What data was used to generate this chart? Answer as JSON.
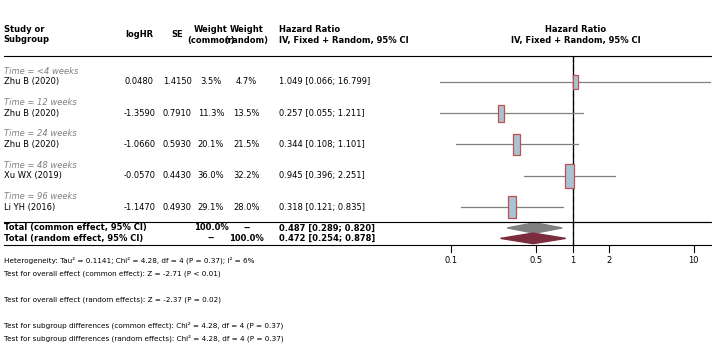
{
  "subgroups": [
    {
      "label": "Time = <4 weeks",
      "type": "subgroup"
    },
    {
      "label": "Zhu B (2020)",
      "loghr": 0.048,
      "se": 1.415,
      "wt_common": "3.5%",
      "wt_random": "4.7%",
      "hr_text": "1.049 [0.066; 16.799]",
      "hr": 1.049,
      "ci_lo": 0.066,
      "ci_hi": 16.799,
      "type": "study"
    },
    {
      "label": "",
      "type": "spacer"
    },
    {
      "label": "Time = 12 weeks",
      "type": "subgroup"
    },
    {
      "label": "Zhu B (2020)",
      "loghr": -1.359,
      "se": 0.791,
      "wt_common": "11.3%",
      "wt_random": "13.5%",
      "hr_text": "0.257 [0.055; 1.211]",
      "hr": 0.257,
      "ci_lo": 0.055,
      "ci_hi": 1.211,
      "type": "study"
    },
    {
      "label": "",
      "type": "spacer"
    },
    {
      "label": "Time = 24 weeks",
      "type": "subgroup"
    },
    {
      "label": "Zhu B (2020)",
      "loghr": -1.066,
      "se": 0.593,
      "wt_common": "20.1%",
      "wt_random": "21.5%",
      "hr_text": "0.344 [0.108; 1.101]",
      "hr": 0.344,
      "ci_lo": 0.108,
      "ci_hi": 1.101,
      "type": "study"
    },
    {
      "label": "",
      "type": "spacer"
    },
    {
      "label": "Time = 48 weeks",
      "type": "subgroup"
    },
    {
      "label": "Xu WX (2019)",
      "loghr": -0.057,
      "se": 0.443,
      "wt_common": "36.0%",
      "wt_random": "32.2%",
      "hr_text": "0.945 [0.396; 2.251]",
      "hr": 0.945,
      "ci_lo": 0.396,
      "ci_hi": 2.251,
      "type": "study"
    },
    {
      "label": "",
      "type": "spacer"
    },
    {
      "label": "Time = 96 weeks",
      "type": "subgroup"
    },
    {
      "label": "Li YH (2016)",
      "loghr": -1.147,
      "se": 0.493,
      "wt_common": "29.1%",
      "wt_random": "28.0%",
      "hr_text": "0.318 [0.121; 0.835]",
      "hr": 0.318,
      "ci_lo": 0.121,
      "ci_hi": 0.835,
      "type": "study"
    },
    {
      "label": "",
      "type": "spacer"
    },
    {
      "label": "Total (common effect, 95% CI)",
      "wt_common": "100.0%",
      "wt_random": "--",
      "hr_text": "0.487 [0.289; 0.820]",
      "hr": 0.487,
      "ci_lo": 0.289,
      "ci_hi": 0.82,
      "type": "total_common"
    },
    {
      "label": "Total (random effect, 95% CI)",
      "wt_common": "--",
      "wt_random": "100.0%",
      "hr_text": "0.472 [0.254; 0.878]",
      "hr": 0.472,
      "ci_lo": 0.254,
      "ci_hi": 0.878,
      "type": "total_random"
    }
  ],
  "footnotes": [
    "Heterogeneity: Tau² = 0.1141; Chi² = 4.28, df = 4 (P = 0.37); I² = 6%",
    "Test for overall effect (common effect): Z = -2.71 (P < 0.01)",
    "",
    "Test for overall effect (random effects): Z = -2.37 (P = 0.02)",
    "",
    "Test for subgroup differences (common effect): Chi² = 4.28, df = 4 (P = 0.37)",
    "Test for subgroup differences (random effects): Chi² = 4.28, df = 4 (P = 0.37)"
  ],
  "axis_ticks": [
    0.1,
    0.5,
    1,
    2,
    10
  ],
  "bg_color": "#ffffff",
  "subgroup_color": "#808080",
  "square_color_fill": "#a8c4d4",
  "square_color_edge": "#c0504d",
  "diamond_common_color": "#808080",
  "diamond_random_color": "#7b2d3e",
  "ci_line_color": "#808080"
}
